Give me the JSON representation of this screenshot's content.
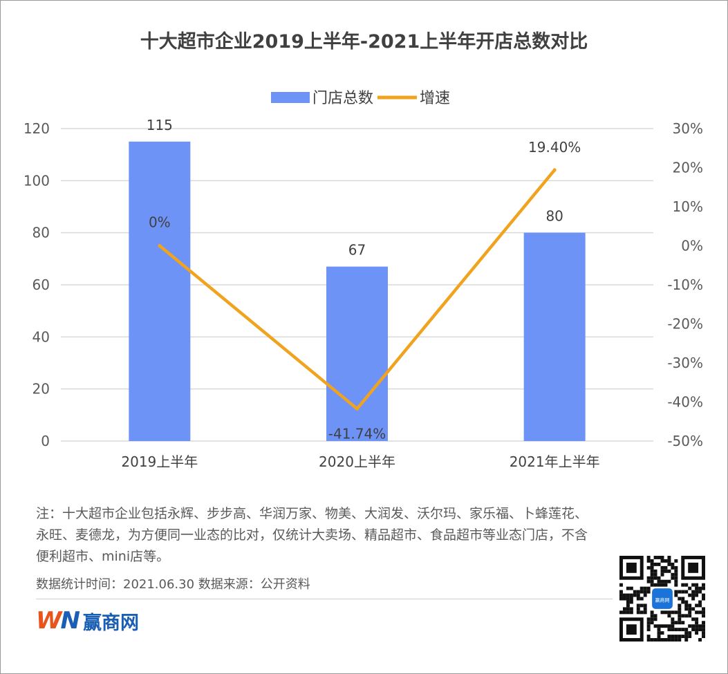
{
  "chart_data": {
    "type": "bar",
    "title": "十大超市企业2019上半年-2021上半年开店总数对比",
    "categories": [
      "2019上半年",
      "2020上半年",
      "2021年上半年"
    ],
    "series": [
      {
        "name": "门店总数",
        "type": "bar",
        "axis": "left",
        "values": [
          115,
          67,
          80
        ],
        "labels": [
          "115",
          "67",
          "80"
        ],
        "color": "#6d93f7"
      },
      {
        "name": "增速",
        "type": "line",
        "axis": "right",
        "values": [
          0,
          -41.74,
          19.4
        ],
        "labels": [
          "0%",
          "-41.74%",
          "19.40%"
        ],
        "color": "#f0a31e"
      }
    ],
    "y_left": {
      "min": 0,
      "max": 120,
      "ticks": [
        "0",
        "20",
        "40",
        "60",
        "80",
        "100",
        "120"
      ]
    },
    "y_right": {
      "min": -50,
      "max": 30,
      "ticks": [
        "-50%",
        "-40%",
        "-30%",
        "-20%",
        "-10%",
        "0%",
        "10%",
        "20%",
        "30%"
      ]
    },
    "legend_position": "top-center",
    "grid": true
  },
  "footer": {
    "note": "注：十大超市企业包括永辉、步步高、华润万家、物美、大润发、沃尔玛、家乐福、卜蜂莲花、永旺、麦德龙，为方便同一业态的比对，仅统计大卖场、精品超市、食品超市等业态门店，不含便利超市、mini店等。",
    "source": "数据统计时间：2021.06.30  数据来源：公开资料",
    "logo_mark_a": "W",
    "logo_mark_b": "N",
    "logo_name": "赢商网",
    "qr_badge": "赢商网"
  }
}
